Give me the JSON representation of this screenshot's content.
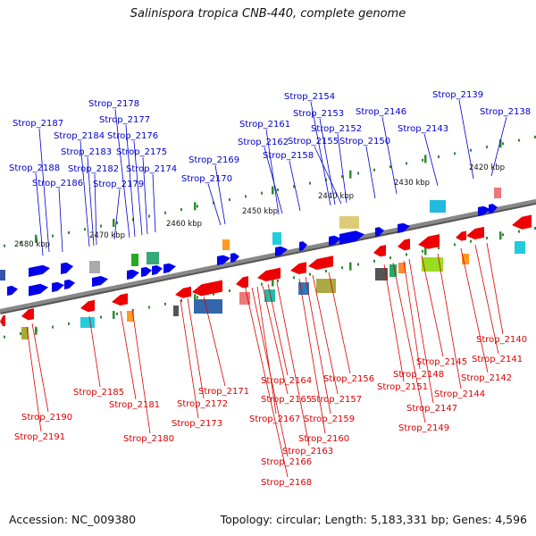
{
  "title": "Salinispora tropica CNB-440, complete genome",
  "footer": {
    "accession": "Accession: NC_009380",
    "summary": "Topology: circular; Length: 5,183,331 bp; Genes: 4,596"
  },
  "colors": {
    "forward": "#0000ee",
    "reverse": "#ee0000",
    "forward_label": "#0000cc",
    "reverse_label": "#dd0000",
    "backbone": "#888888",
    "tick": "#2e8b2e"
  },
  "scale_labels": [
    {
      "text": "2420 kbp",
      "kbp": 2420
    },
    {
      "text": "2430 kbp",
      "kbp": 2430
    },
    {
      "text": "2440 kbp",
      "kbp": 2440
    },
    {
      "text": "2450 kbp",
      "kbp": 2450
    },
    {
      "text": "2460 kbp",
      "kbp": 2460
    },
    {
      "text": "2470 kbp",
      "kbp": 2470
    },
    {
      "text": "2480 kbp",
      "kbp": 2480
    }
  ],
  "forward_labels": [
    "Strop_2187",
    "Strop_2188",
    "Strop_2186",
    "Strop_2184",
    "Strop_2183",
    "Strop_2182",
    "Strop_2179",
    "Strop_2178",
    "Strop_2177",
    "Strop_2176",
    "Strop_2175",
    "Strop_2174",
    "Strop_2170",
    "Strop_2169",
    "Strop_2161",
    "Strop_2162",
    "Strop_2158",
    "Strop_2154",
    "Strop_2153",
    "Strop_2155",
    "Strop_2152",
    "Strop_2150",
    "Strop_2146",
    "Strop_2143",
    "Strop_2139",
    "Strop_2138"
  ],
  "reverse_labels": [
    "Strop_2190",
    "Strop_2191",
    "Strop_2185",
    "Strop_2181",
    "Strop_2180",
    "Strop_2173",
    "Strop_2172",
    "Strop_2171",
    "Strop_2168",
    "Strop_2166",
    "Strop_2167",
    "Strop_2165",
    "Strop_2164",
    "Strop_2163",
    "Strop_2160",
    "Strop_2159",
    "Strop_2157",
    "Strop_2156",
    "Strop_2151",
    "Strop_2149",
    "Strop_2148",
    "Strop_2147",
    "Strop_2145",
    "Strop_2144",
    "Strop_2142",
    "Strop_2141",
    "Strop_2140"
  ]
}
